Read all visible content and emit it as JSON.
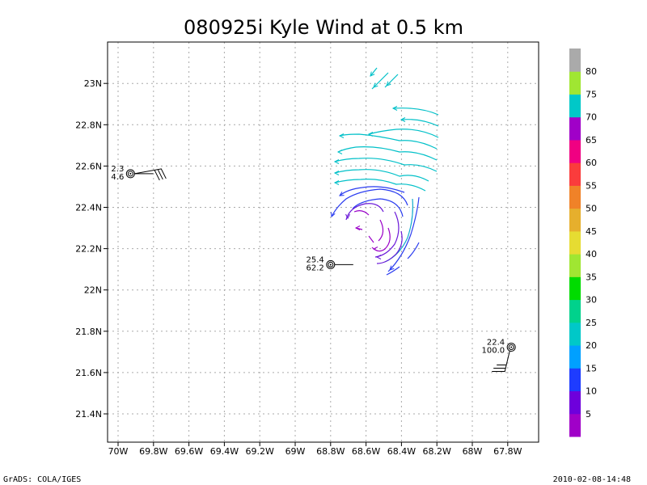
{
  "chart_data": {
    "type": "vector-field",
    "title": "080925i Kyle Wind at 0.5 km",
    "x_ticks": [
      "70W",
      "69.8W",
      "69.6W",
      "69.4W",
      "69.2W",
      "69W",
      "68.8W",
      "68.6W",
      "68.4W",
      "68.2W",
      "68W",
      "67.8W"
    ],
    "y_ticks": [
      "21.4N",
      "21.6N",
      "21.8N",
      "22N",
      "22.2N",
      "22.4N",
      "22.6N",
      "22.8N",
      "23N"
    ],
    "grid": true,
    "colorbar": {
      "labels": [
        "5",
        "10",
        "15",
        "20",
        "25",
        "30",
        "35",
        "40",
        "45",
        "50",
        "55",
        "60",
        "65",
        "70",
        "75",
        "80"
      ],
      "colors": [
        "#a000c8",
        "#6e00dc",
        "#1e3cff",
        "#00a0ff",
        "#00c8c8",
        "#00d28c",
        "#00dc00",
        "#a0e632",
        "#e6dc32",
        "#e6af2d",
        "#f08228",
        "#fa3c3c",
        "#f00082",
        "#a000c8",
        "#00c8c8",
        "#a0e632",
        "#aaaaaa"
      ]
    },
    "stations": [
      {
        "lines": [
          "2.3",
          "4.6"
        ],
        "lon": -69.93,
        "lat": 22.56,
        "barb_dir": "east"
      },
      {
        "lines": [
          "25.4",
          "62.2"
        ],
        "lon": -68.8,
        "lat": 22.12,
        "barb_dir": "east"
      },
      {
        "lines": [
          "22.4",
          "100.0"
        ],
        "lon": -67.78,
        "lat": 21.72,
        "barb_dir": "southwest"
      }
    ]
  },
  "footer": {
    "left": "GrADS: COLA/IGES",
    "right": "2010-02-08-14:48"
  }
}
